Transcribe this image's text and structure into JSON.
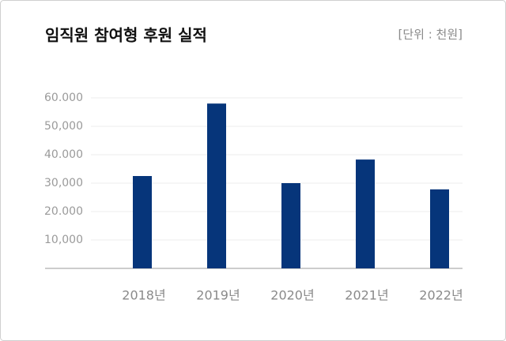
{
  "chart_data": {
    "type": "bar",
    "title": "임직원 참여형 후원 실적",
    "unit_label": "[단위 : 천원]",
    "categories": [
      "2018년",
      "2019년",
      "2020년",
      "2021년",
      "2022년"
    ],
    "values": [
      32500,
      58000,
      30000,
      38300,
      27800
    ],
    "color": "#06357a",
    "ylim": [
      0,
      60000
    ],
    "yticks": [
      {
        "value": 10000,
        "label": "10,000"
      },
      {
        "value": 20000,
        "label": "20.000"
      },
      {
        "value": 30000,
        "label": "30,000"
      },
      {
        "value": 40000,
        "label": "40.000"
      },
      {
        "value": 50000,
        "label": "50,000"
      },
      {
        "value": 60000,
        "label": "60.000"
      }
    ],
    "grid": true
  }
}
